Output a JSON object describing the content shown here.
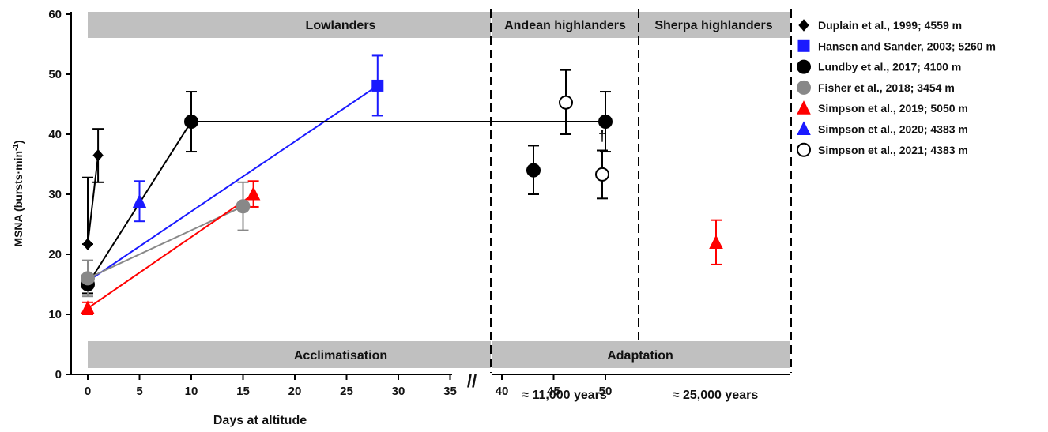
{
  "chart_data": {
    "type": "scatter",
    "ylabel": "MSNA (bursts·min",
    "ylabel_sup": "-1",
    "ylabel_close": ")",
    "xlabel": "Days at altitude",
    "ylim": [
      0,
      60
    ],
    "yticks": [
      0,
      10,
      20,
      30,
      40,
      50,
      60
    ],
    "xlim_days": [
      0,
      50
    ],
    "xticks": [
      0,
      5,
      10,
      15,
      20,
      25,
      30,
      35,
      40,
      45,
      50
    ],
    "axis_break": "//",
    "bands": {
      "top": [
        {
          "key": "lowlanders",
          "label": "Lowlanders"
        },
        {
          "key": "andean",
          "label": "Andean highlanders"
        },
        {
          "key": "sherpa",
          "label": "Sherpa highlanders"
        }
      ],
      "bottom": [
        {
          "key": "acclimatisation",
          "label": "Acclimatisation"
        },
        {
          "key": "adaptation",
          "label": "Adaptation"
        }
      ]
    },
    "group_labels": {
      "andean": "≈ 11,000 years",
      "sherpa": "≈ 25,000 years"
    },
    "dagger": "†",
    "series": [
      {
        "name": "Duplain et al., 1999; 4559 m",
        "marker": "diamond",
        "color": "#000000",
        "fill": "filled",
        "line": true,
        "points": [
          {
            "x": 0,
            "y": 21.7,
            "err_lo": 21.7,
            "err_hi": 32.8
          },
          {
            "x": 1,
            "y": 36.5,
            "err_lo": 32.0,
            "err_hi": 40.9
          }
        ]
      },
      {
        "name": "Hansen and Sander, 2003; 5260 m",
        "marker": "square",
        "color": "#1a1aff",
        "fill": "filled",
        "line": true,
        "points": [
          {
            "x": 0,
            "y": 15.5,
            "err_lo": 14.5,
            "err_hi": 16.5
          },
          {
            "x": 28,
            "y": 48.1,
            "err_lo": 43.1,
            "err_hi": 53.1
          }
        ]
      },
      {
        "name": "Lundby et al., 2017; 4100 m",
        "marker": "circle",
        "color": "#000000",
        "fill": "filled",
        "line": true,
        "points": [
          {
            "x": 0,
            "y": 15.0,
            "err_lo": 13.5,
            "err_hi": 16.5
          },
          {
            "x": 10,
            "y": 42.1,
            "err_lo": 37.1,
            "err_hi": 47.1
          },
          {
            "x": 50,
            "y": 42.1,
            "err_lo": 37.1,
            "err_hi": 47.1
          },
          {
            "group": "andean",
            "slot": 0,
            "y": 34.0,
            "err_lo": 30.0,
            "err_hi": 38.1
          }
        ]
      },
      {
        "name": "Fisher et al., 2018; 3454 m",
        "marker": "circle",
        "color": "#888888",
        "fill": "filled",
        "line": true,
        "points": [
          {
            "x": 0,
            "y": 16.0,
            "err_lo": 13.0,
            "err_hi": 19.0
          },
          {
            "x": 15,
            "y": 28.0,
            "err_lo": 24.0,
            "err_hi": 32.0
          }
        ]
      },
      {
        "name": "Simpson et al., 2019; 5050 m",
        "marker": "triangle",
        "color": "#ff0000",
        "fill": "filled",
        "line": true,
        "points": [
          {
            "x": 0,
            "y": 11.0,
            "err_lo": 10.0,
            "err_hi": 12.0
          },
          {
            "x": 16,
            "y": 30.0,
            "err_lo": 27.9,
            "err_hi": 32.2
          },
          {
            "group": "sherpa",
            "slot": 0,
            "y": 21.9,
            "err_lo": 18.3,
            "err_hi": 25.7
          }
        ]
      },
      {
        "name": "Simpson et al., 2020; 4383 m",
        "marker": "triangle",
        "color": "#1a1aff",
        "fill": "filled",
        "line": false,
        "points": [
          {
            "x": 5,
            "y": 28.7,
            "err_lo": 25.5,
            "err_hi": 32.2
          }
        ]
      },
      {
        "name": "Simpson et al., 2021; 4383 m",
        "marker": "circle",
        "color": "#000000",
        "fill": "open",
        "line": false,
        "points": [
          {
            "group": "andean",
            "slot": 1,
            "y": 45.3,
            "err_lo": 40.0,
            "err_hi": 50.7
          },
          {
            "group": "andean",
            "slot": 2,
            "y": 33.3,
            "err_lo": 29.3,
            "err_hi": 37.3,
            "dagger": true
          }
        ]
      }
    ]
  }
}
